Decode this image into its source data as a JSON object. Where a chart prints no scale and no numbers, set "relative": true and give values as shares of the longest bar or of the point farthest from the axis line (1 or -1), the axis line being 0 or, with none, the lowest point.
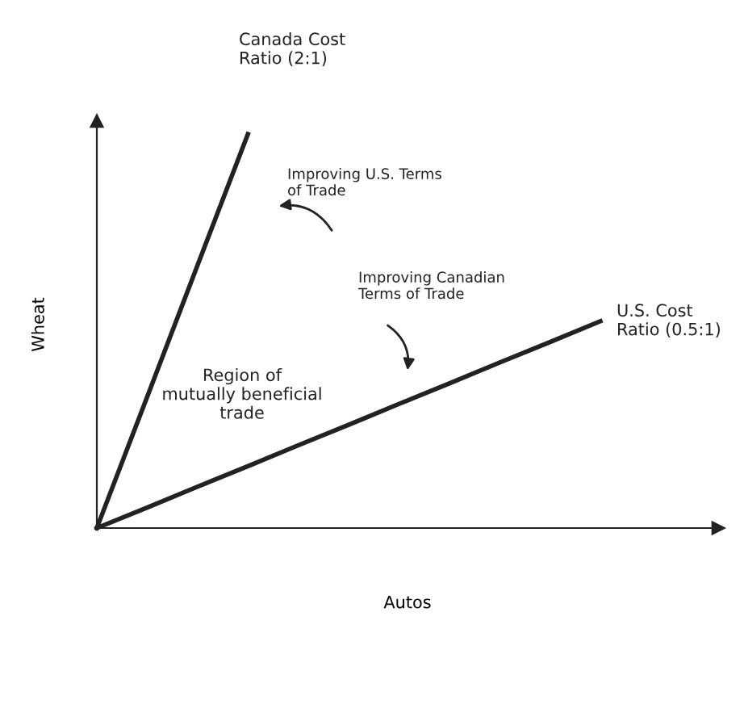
{
  "chart_data": {
    "type": "line",
    "relative": true,
    "xlabel": "Autos",
    "ylabel": "Wheat",
    "categories": [
      null,
      null,
      null,
      null,
      null,
      null,
      null,
      null,
      null,
      null,
      null
    ],
    "series": [
      {
        "name": "Canada Cost Ratio (2:1)",
        "color": "#222222",
        "values": [
          0,
          0.333,
          0.667,
          1,
          null,
          null,
          null,
          null,
          null,
          null,
          null
        ]
      },
      {
        "name": "U.S. Cost Ratio (0.5:1)",
        "color": "#222222",
        "values": [
          0,
          0.052,
          0.105,
          0.157,
          0.21,
          0.262,
          0.315,
          0.367,
          0.42,
          0.472,
          0.525
        ]
      }
    ],
    "annotations": [
      "Improving U.S. Terms\nof Trade",
      "Improving Canadian\nTerms of Trade",
      "Region of\nmutually beneficial\ntrade"
    ],
    "legend": false,
    "marker": "none",
    "line_style": "solid"
  }
}
